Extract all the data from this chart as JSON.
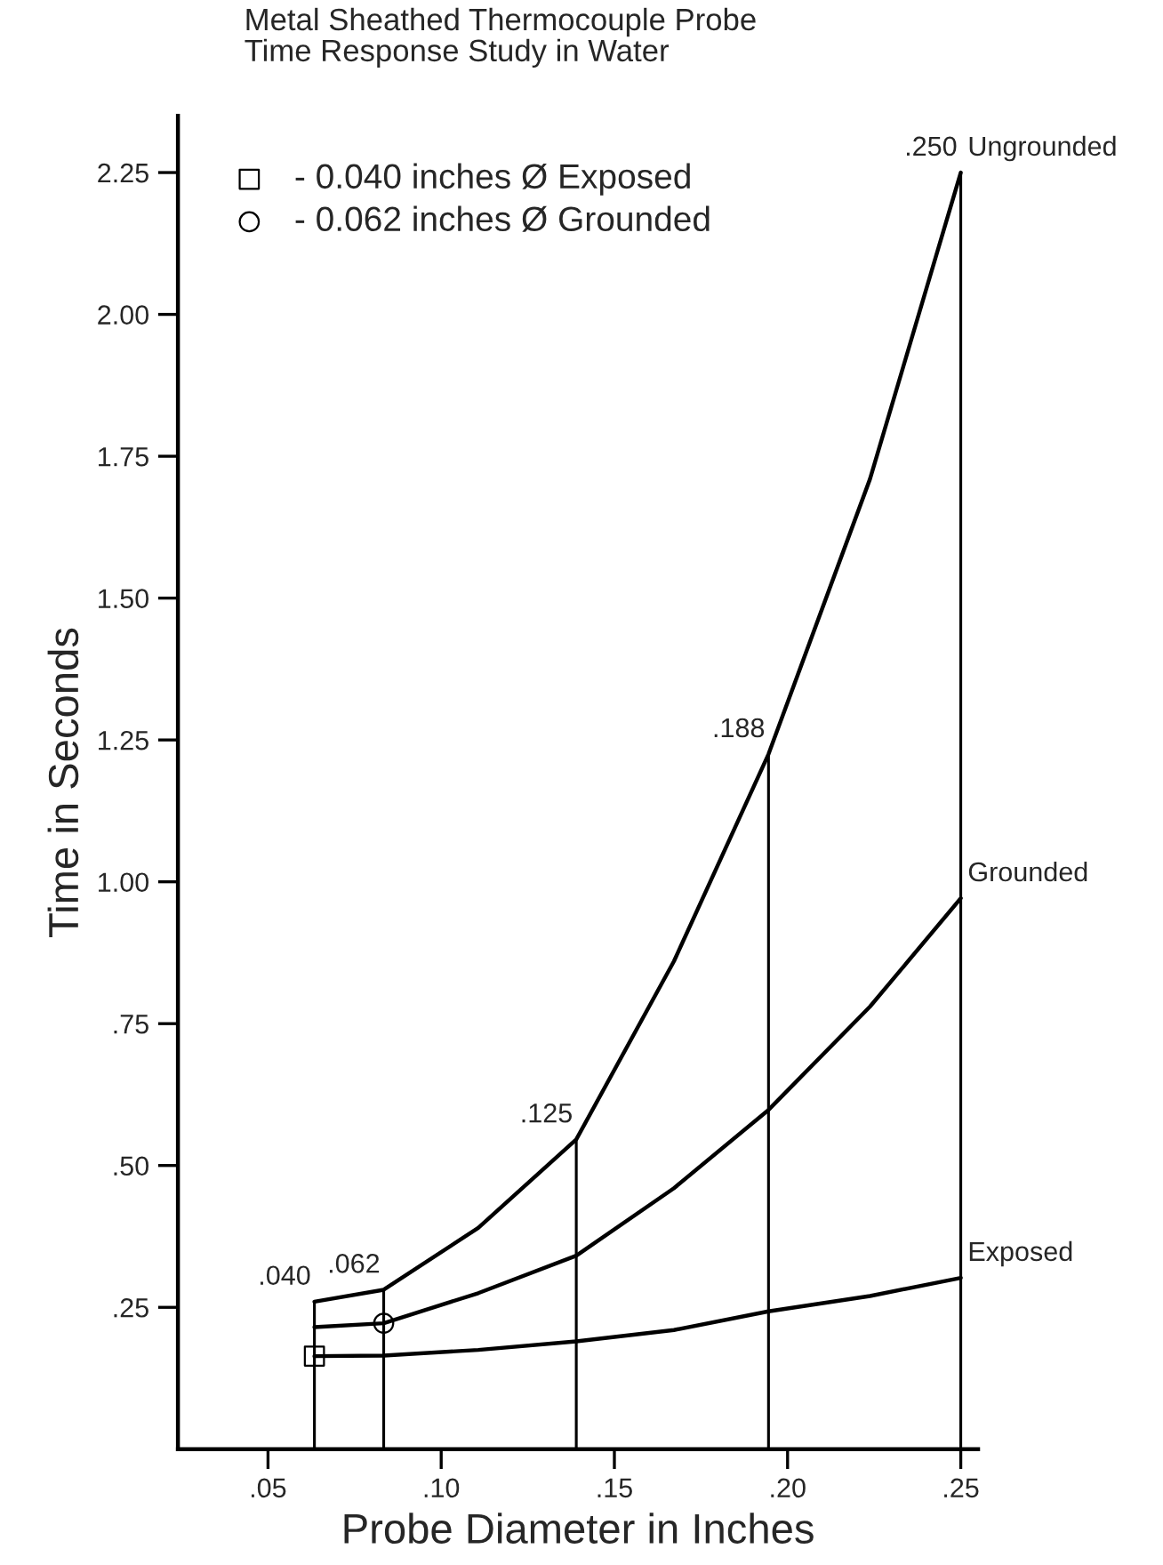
{
  "chart_data": {
    "type": "line",
    "title": "Metal Sheathed Thermocouple Probe\nTime Response Study in Water",
    "xlabel": "Probe Diameter in Inches",
    "ylabel": "Time in Seconds",
    "xlim": [
      0.024,
      0.255
    ],
    "ylim": [
      0,
      2.35
    ],
    "xticks": [
      {
        "value": 0.05,
        "label": ".05"
      },
      {
        "value": 0.1,
        "label": ".10"
      },
      {
        "value": 0.15,
        "label": ".15"
      },
      {
        "value": 0.2,
        "label": ".20"
      },
      {
        "value": 0.25,
        "label": ".25"
      }
    ],
    "yticks": [
      {
        "value": 0.25,
        "label": ".25"
      },
      {
        "value": 0.5,
        "label": ".50"
      },
      {
        "value": 0.75,
        "label": ".75"
      },
      {
        "value": 1.0,
        "label": "1.00"
      },
      {
        "value": 1.25,
        "label": "1.25"
      },
      {
        "value": 1.5,
        "label": "1.50"
      },
      {
        "value": 1.75,
        "label": "1.75"
      },
      {
        "value": 2.0,
        "label": "2.00"
      },
      {
        "value": 2.25,
        "label": "2.25"
      }
    ],
    "x": [
      0.0634,
      0.0834,
      0.139,
      0.1945,
      0.25
    ],
    "grid": false,
    "legend": "top left",
    "series": [
      {
        "name": "Ungrounded",
        "color": "#000000",
        "x": [
          0.0634,
          0.0834,
          0.1107,
          0.139,
          0.1672,
          0.1945,
          0.2238,
          0.25
        ],
        "values": [
          0.26,
          0.281,
          0.39,
          0.546,
          0.86,
          1.225,
          1.71,
          2.25
        ]
      },
      {
        "name": "Grounded",
        "color": "#000000",
        "x": [
          0.0634,
          0.0834,
          0.1107,
          0.139,
          0.1672,
          0.1945,
          0.2238,
          0.25
        ],
        "values": [
          0.215,
          0.222,
          0.275,
          0.341,
          0.46,
          0.598,
          0.78,
          0.971
        ]
      },
      {
        "name": "Exposed",
        "color": "#000000",
        "x": [
          0.0634,
          0.0834,
          0.1107,
          0.139,
          0.1672,
          0.1945,
          0.2238,
          0.25
        ],
        "values": [
          0.164,
          0.165,
          0.175,
          0.19,
          0.21,
          0.243,
          0.27,
          0.302
        ]
      },
      {
        "color": "#000000",
        "type": "bar",
        "values": [
          0.26,
          0.281,
          0.546,
          1.225,
          2.25
        ]
      },
      {
        "name": "- 0.040 inches Ø Exposed",
        "color": "#000000",
        "type": "scatter",
        "marker": "square",
        "x": [
          0.0634
        ],
        "values": [
          0.164
        ]
      },
      {
        "name": "- 0.062 inches Ø Grounded",
        "color": "#000000",
        "type": "scatter",
        "marker": "circle",
        "x": [
          0.0834
        ],
        "values": [
          0.222
        ]
      }
    ],
    "annotations": [
      {
        "text": ".040",
        "x": 0.0634,
        "y": 0.26
      },
      {
        "text": ".062",
        "x": 0.0834,
        "y": 0.281
      },
      {
        "text": ".125",
        "x": 0.139,
        "y": 0.546
      },
      {
        "text": ".188",
        "x": 0.1945,
        "y": 1.225
      },
      {
        "text": ".250",
        "x": 0.25,
        "y": 2.25
      }
    ]
  }
}
